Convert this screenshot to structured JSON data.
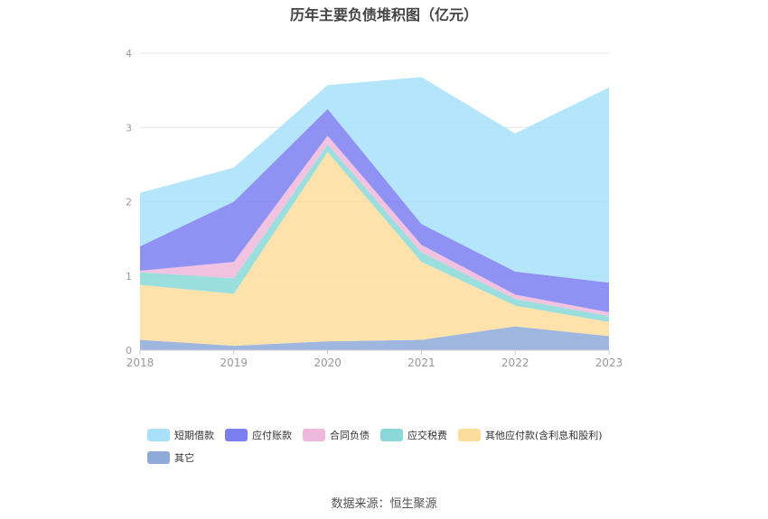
{
  "chart_data": {
    "type": "area",
    "title": "历年主要负债堆积图（亿元）",
    "categories": [
      "2018",
      "2019",
      "2020",
      "2021",
      "2022",
      "2023"
    ],
    "ylim": [
      0,
      4
    ],
    "yticks": [
      "0",
      "1",
      "2",
      "3",
      "4"
    ],
    "grid": true,
    "legend_position": "bottom",
    "stacked": true,
    "series": [
      {
        "name": "其它",
        "color": "#8eaad8",
        "values": [
          0.14,
          0.06,
          0.12,
          0.14,
          0.32,
          0.19
        ]
      },
      {
        "name": "其他应付款(含利息和股利)",
        "color": "#fddd9c",
        "values": [
          0.74,
          0.7,
          2.55,
          1.05,
          0.28,
          0.19
        ]
      },
      {
        "name": "应交税费",
        "color": "#8ad8d8",
        "values": [
          0.17,
          0.21,
          0.1,
          0.13,
          0.09,
          0.08
        ]
      },
      {
        "name": "合同负债",
        "color": "#eeb8dc",
        "values": [
          0.02,
          0.22,
          0.12,
          0.1,
          0.06,
          0.05
        ]
      },
      {
        "name": "应付账款",
        "color": "#7b7ff0",
        "values": [
          0.33,
          0.81,
          0.36,
          0.28,
          0.31,
          0.4
        ]
      },
      {
        "name": "短期借款",
        "color": "#a8e0fa",
        "values": [
          0.72,
          0.46,
          0.32,
          1.98,
          1.86,
          2.63
        ]
      }
    ]
  },
  "legend_order": [
    5,
    4,
    3,
    2,
    1,
    0
  ],
  "source_note": "数据来源：恒生聚源"
}
